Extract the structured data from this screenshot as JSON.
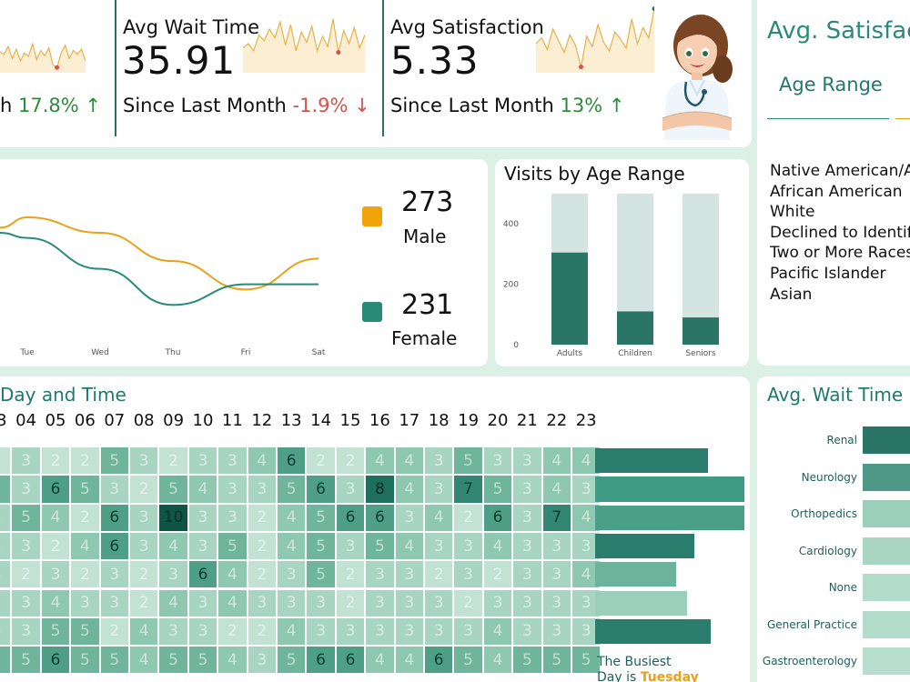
{
  "kpis": {
    "visits": {
      "delta_prefix": "h",
      "delta": "17.8%",
      "arrow": "↑"
    },
    "wait": {
      "title": "Avg Wait Time",
      "value": "35.91",
      "since": "Since Last Month",
      "delta": "-1.9%",
      "arrow": "↓"
    },
    "satisfaction": {
      "title": "Avg Satisfaction",
      "value": "5.33",
      "since": "Since Last Month",
      "delta": "13%",
      "arrow": "↑"
    }
  },
  "sparklines": {
    "visits": [
      32,
      28,
      40,
      22,
      36,
      18,
      30,
      25,
      44,
      20,
      34,
      26,
      38,
      12,
      8,
      30,
      42,
      22,
      34,
      28,
      36,
      18
    ],
    "wait": [
      34,
      40,
      30,
      52,
      44,
      60,
      48,
      70,
      38,
      66,
      30,
      56,
      42,
      64,
      30,
      50,
      36,
      74,
      28,
      58,
      40,
      62,
      34,
      52
    ],
    "satisfaction": [
      40,
      48,
      32,
      60,
      44,
      28,
      52,
      38,
      8,
      50,
      36,
      66,
      42,
      30,
      56,
      46,
      34,
      74,
      40,
      62,
      48,
      88
    ]
  },
  "gender": {
    "male": {
      "count": "273",
      "label": "Male",
      "color": "#f0a30a"
    },
    "female": {
      "count": "231",
      "label": "Female",
      "color": "#2a8a78"
    }
  },
  "gender_chart": {
    "type": "line",
    "x": [
      "Tue",
      "Wed",
      "Thu",
      "Fri",
      "Sat"
    ],
    "series": [
      {
        "color": "#e8a21a",
        "values": [
          68,
          62,
          51,
          40,
          52
        ]
      },
      {
        "color": "#2a8a78",
        "values": [
          60,
          48,
          34,
          42,
          42
        ]
      }
    ]
  },
  "age_chart": {
    "title": "Visits by Age Range",
    "type": "bar",
    "categories": [
      "Adults",
      "Children",
      "Seniors"
    ],
    "yticks": [
      "0",
      "200",
      "400"
    ],
    "ylim": [
      0,
      500
    ],
    "values": [
      305,
      110,
      90
    ],
    "totals": [
      500,
      500,
      500
    ],
    "colors": {
      "filled": "#2a7566",
      "background": "#d4e4e0"
    }
  },
  "satisfaction_panel": {
    "title": "Avg. Satisfac",
    "tab": "Age Range",
    "items": [
      "Native American/A",
      "African American",
      "White",
      "Declined to Identif",
      "Two or More Races",
      "Pacific Islander",
      "Asian"
    ]
  },
  "heatmap": {
    "title": "Day and Time",
    "hours": [
      "03",
      "04",
      "05",
      "06",
      "07",
      "08",
      "09",
      "10",
      "11",
      "12",
      "13",
      "14",
      "15",
      "16",
      "17",
      "18",
      "19",
      "20",
      "21",
      "22",
      "23"
    ],
    "rows": [
      [
        2,
        3,
        2,
        2,
        5,
        3,
        2,
        3,
        3,
        4,
        6,
        2,
        2,
        4,
        4,
        3,
        5,
        3,
        3,
        4,
        4
      ],
      [
        5,
        3,
        6,
        5,
        3,
        2,
        5,
        4,
        3,
        3,
        5,
        6,
        3,
        8,
        4,
        3,
        7,
        5,
        3,
        4,
        3
      ],
      [
        3,
        5,
        4,
        2,
        6,
        3,
        10,
        3,
        3,
        2,
        4,
        5,
        6,
        6,
        3,
        4,
        2,
        6,
        3,
        7,
        4
      ],
      [
        3,
        3,
        2,
        4,
        6,
        3,
        4,
        3,
        5,
        2,
        4,
        5,
        3,
        5,
        4,
        3,
        3,
        4,
        3,
        3,
        3
      ],
      [
        3,
        2,
        3,
        2,
        3,
        2,
        3,
        6,
        4,
        2,
        3,
        5,
        2,
        3,
        3,
        2,
        3,
        2,
        3,
        3,
        4
      ],
      [
        3,
        3,
        4,
        3,
        3,
        2,
        4,
        3,
        4,
        3,
        3,
        3,
        2,
        3,
        3,
        3,
        2,
        3,
        3,
        3,
        3
      ],
      [
        3,
        3,
        5,
        5,
        2,
        4,
        3,
        3,
        2,
        2,
        4,
        3,
        3,
        3,
        3,
        3,
        3,
        4,
        3,
        3,
        3
      ],
      [
        5,
        5,
        6,
        5,
        5,
        4,
        5,
        5,
        4,
        3,
        5,
        6,
        6,
        4,
        4,
        6,
        5,
        4,
        5,
        5,
        5
      ]
    ],
    "row_totals": [
      125,
      165,
      165,
      110,
      90,
      102,
      128,
      155
    ],
    "busiest_prefix": "The Busiest",
    "busiest_mid": "Day is",
    "busiest_day": "Tuesday"
  },
  "wait_panel": {
    "title": "Avg. Wait Time b",
    "departments": [
      {
        "label": "Renal",
        "value": 62
      },
      {
        "label": "Neurology",
        "value": 53
      },
      {
        "label": "Orthopedics",
        "value": 52
      },
      {
        "label": "Cardiology",
        "value": 52
      },
      {
        "label": "None",
        "value": 52
      },
      {
        "label": "General Practice",
        "value": 52
      },
      {
        "label": "Gastroenterology",
        "value": 52
      }
    ]
  }
}
